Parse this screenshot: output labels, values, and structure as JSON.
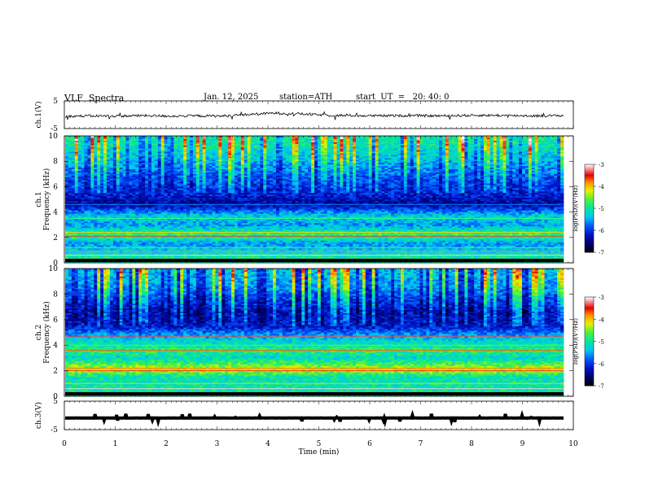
{
  "header": {
    "title": "VLF  Spectra",
    "date": "Jan. 12, 2025",
    "station": "station=ATH",
    "start": "start  UT  =   20: 40: 0"
  },
  "colorbar": {
    "label": "log(PSD)(V²/Hz)",
    "ticks": [
      "-3",
      "-4",
      "-5",
      "-6",
      "-7"
    ]
  },
  "chart_data": [
    {
      "type": "line",
      "panel": "ch1",
      "ylabel": "ch.1(V)",
      "ylim": [
        -5,
        5
      ],
      "yticks": [
        "5",
        "-5"
      ],
      "xlim": [
        0,
        10
      ],
      "series": [
        {
          "values": [
            -0.6,
            -0.4,
            -0.5,
            -0.3,
            -0.5,
            -0.4,
            -0.5,
            0.1,
            0.6,
            0.3,
            -0.2,
            -0.3,
            -0.4,
            -0.3,
            -0.4,
            -0.3,
            -0.2,
            -0.3,
            -0.4,
            -0.3
          ]
        }
      ]
    },
    {
      "type": "heatmap",
      "panel": "ch1-spectrogram",
      "ylabel": "ch.1\nFrequency  (kHz)",
      "ylim": [
        0,
        10
      ],
      "yticks": [
        "0",
        "2",
        "4",
        "6",
        "8",
        "10"
      ],
      "xlim": [
        0,
        10
      ],
      "colorscale": "log(PSD) -7 (black) to -3 (white)",
      "freq_kHz": [
        0.5,
        1.5,
        2.2,
        3,
        3.6,
        4.6,
        5.5,
        6.5,
        7.5,
        8.5,
        9.5
      ],
      "levels": [
        -5.0,
        -5.6,
        -4.7,
        -5.6,
        -5.2,
        -6.4,
        -6.1,
        -5.9,
        -5.6,
        -5.3,
        -5.0
      ]
    },
    {
      "type": "heatmap",
      "panel": "ch2-spectrogram",
      "ylabel": "ch.2\nFrequency  (kHz)",
      "ylim": [
        0,
        10
      ],
      "yticks": [
        "0",
        "2",
        "4",
        "6",
        "8",
        "10"
      ],
      "xlim": [
        0,
        10
      ],
      "colorscale": "log(PSD) -7 (black) to -3 (white)",
      "freq_kHz": [
        0.5,
        1.5,
        2.1,
        3,
        3.6,
        4.6,
        5.5,
        6.5,
        7.5,
        8.5,
        9.5
      ],
      "levels": [
        -5.0,
        -5.1,
        -4.2,
        -5.2,
        -4.8,
        -5.4,
        -6.2,
        -6.3,
        -6.0,
        -5.6,
        -5.4
      ]
    },
    {
      "type": "line",
      "panel": "ch3",
      "ylabel": "ch.3(V)",
      "ylim": [
        -5,
        5
      ],
      "yticks": [
        "5",
        "-5"
      ],
      "xlim": [
        0,
        10
      ],
      "series": [
        {
          "values": [
            -0.9,
            -0.9,
            -0.9,
            -0.9,
            -0.9,
            -0.9,
            -0.9,
            -0.9,
            -0.9,
            -0.9
          ]
        }
      ]
    }
  ],
  "xaxis": {
    "label": "Time  (min)",
    "ticks": [
      "0",
      "1",
      "2",
      "3",
      "4",
      "5",
      "6",
      "7",
      "8",
      "9",
      "10"
    ]
  }
}
